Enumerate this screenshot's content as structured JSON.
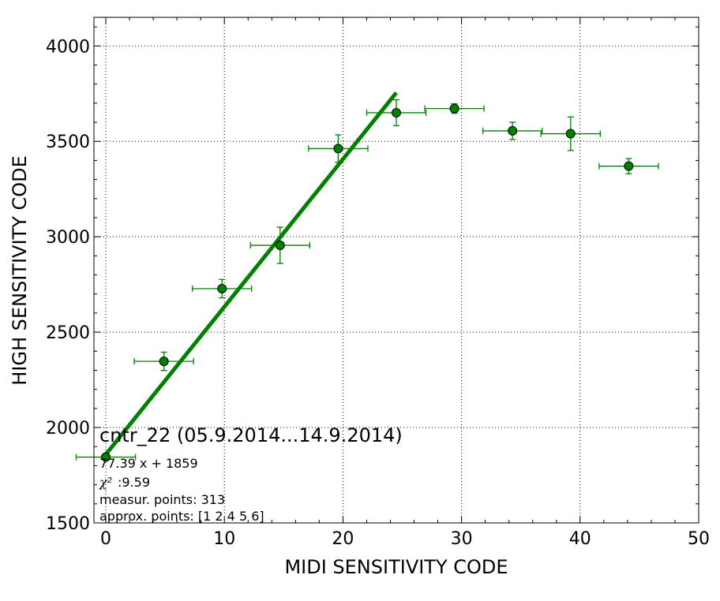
{
  "chart_data": {
    "type": "scatter",
    "xlabel": "MIDI SENSITIVITY CODE",
    "ylabel": "HIGH SENSITIVITY CODE",
    "xlim": [
      -1,
      50
    ],
    "ylim": [
      1500,
      4150
    ],
    "x_ticks": [
      0,
      10,
      20,
      30,
      40,
      50
    ],
    "y_ticks": [
      1500,
      2000,
      2500,
      3000,
      3500,
      4000
    ],
    "grid": true,
    "colors": {
      "points": "#008000",
      "fit_line": "#008000",
      "axes": "#000000",
      "grid": "#000000"
    },
    "series": [
      {
        "points": [
          {
            "x": 0,
            "y": 1845,
            "xerr": 2.5,
            "yerr": 0
          },
          {
            "x": 4.9,
            "y": 2347,
            "xerr": 2.5,
            "yerr": 48
          },
          {
            "x": 9.8,
            "y": 2728,
            "xerr": 2.5,
            "yerr": 48
          },
          {
            "x": 14.7,
            "y": 2955,
            "xerr": 2.5,
            "yerr": 95
          },
          {
            "x": 19.6,
            "y": 3462,
            "xerr": 2.5,
            "yerr": 72
          },
          {
            "x": 24.5,
            "y": 3650,
            "xerr": 2.5,
            "yerr": 68
          },
          {
            "x": 29.4,
            "y": 3672,
            "xerr": 2.5,
            "yerr": 25
          },
          {
            "x": 34.3,
            "y": 3555,
            "xerr": 2.5,
            "yerr": 45
          },
          {
            "x": 39.2,
            "y": 3540,
            "xerr": 2.5,
            "yerr": 88
          },
          {
            "x": 44.1,
            "y": 3370,
            "xerr": 2.5,
            "yerr": 40
          }
        ]
      }
    ],
    "fit_line": {
      "slope": 77.39,
      "intercept": 1859,
      "x_range": [
        0,
        24.5
      ]
    },
    "annotations": {
      "title": "cntr_22 (05.9.2014...14.9.2014)",
      "equation": "77.39 x + 1859",
      "chi2_symbol": "χ²",
      "chi2_value": ":9.59",
      "measur_points": "measur. points: 313",
      "approx_points": "approx. points: [1 2 4 5 6]"
    }
  }
}
